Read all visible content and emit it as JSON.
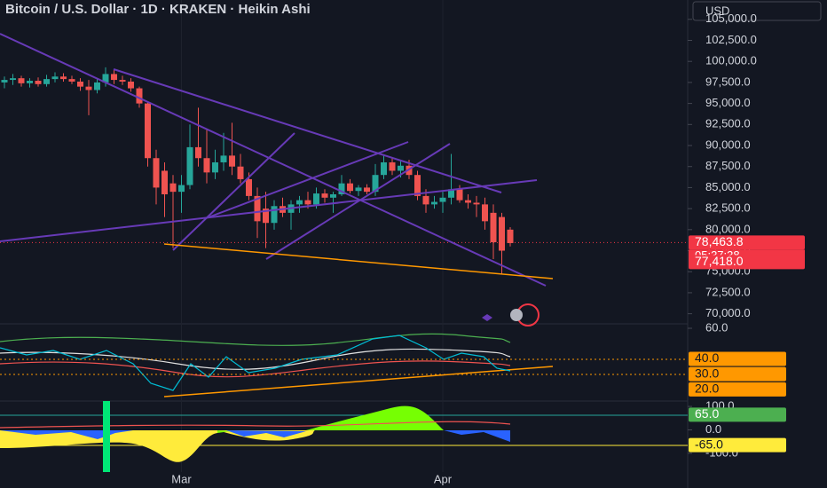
{
  "title": "Bitcoin / U.S. Dollar · 1D · KRAKEN · Heikin Ashi",
  "currency_button": "USD",
  "chart_data": [
    {
      "type": "candlestick",
      "up_color": "#26a69a",
      "down_color": "#ef5350",
      "categories": [
        null,
        null,
        null,
        null,
        null,
        null,
        null,
        null,
        null,
        null,
        null,
        null,
        null,
        null,
        null,
        null,
        null,
        null,
        null,
        null,
        null,
        "Mar",
        null,
        null,
        null,
        null,
        null,
        null,
        null,
        null,
        null,
        null,
        null,
        null,
        null,
        null,
        null,
        null,
        null,
        null,
        null,
        null,
        null,
        null,
        null,
        null,
        null,
        null,
        null,
        null,
        null,
        null,
        "Apr",
        null,
        null,
        null,
        null,
        null,
        null,
        null,
        null
      ],
      "open": [
        97500,
        97800,
        98000,
        97400,
        97700,
        97300,
        97900,
        98200,
        97900,
        97600,
        97000,
        96600,
        97500,
        98500,
        97800,
        97600,
        96800,
        95000,
        88500,
        87000,
        85500,
        84500,
        85300,
        89800,
        88500,
        86800,
        88000,
        88800,
        87500,
        86000,
        84000,
        82500,
        80800,
        82800,
        82000,
        83000,
        83500,
        83000,
        84300,
        83800,
        84200,
        85500,
        84600,
        85000,
        84500,
        86500,
        88000,
        87000,
        87600,
        86500,
        84000,
        83000,
        83300,
        83800,
        84800,
        83500,
        83200,
        83000,
        82000,
        81500,
        80000
      ],
      "high": [
        98200,
        98500,
        98300,
        98000,
        98100,
        98400,
        98700,
        98600,
        98300,
        98000,
        97800,
        97900,
        99300,
        99000,
        98300,
        98000,
        97000,
        95200,
        89500,
        88000,
        86500,
        86500,
        92500,
        94500,
        92000,
        89500,
        91500,
        92700,
        89000,
        86800,
        85000,
        84500,
        83500,
        83800,
        83500,
        84000,
        84500,
        85000,
        84800,
        84500,
        86500,
        86000,
        85300,
        85400,
        87800,
        88800,
        88500,
        88200,
        88300,
        87000,
        84800,
        84000,
        84500,
        89000,
        85300,
        84200,
        84000,
        83800,
        83000,
        82000,
        80300
      ],
      "low": [
        96800,
        97200,
        97000,
        96900,
        97000,
        97000,
        97500,
        97600,
        97300,
        96500,
        93600,
        96200,
        97000,
        97300,
        97200,
        96400,
        94500,
        87500,
        83000,
        81500,
        77800,
        82000,
        84800,
        87500,
        85500,
        86000,
        87000,
        86500,
        85500,
        83500,
        79000,
        77800,
        80000,
        81500,
        80000,
        82000,
        82500,
        82500,
        83200,
        82000,
        84000,
        84300,
        84000,
        84200,
        84000,
        86000,
        86500,
        86200,
        86000,
        83500,
        82000,
        82500,
        82000,
        83000,
        83200,
        82500,
        81500,
        80000,
        76500,
        74700,
        78000
      ],
      "close": [
        97800,
        98000,
        97400,
        97700,
        97300,
        97900,
        98200,
        97900,
        97600,
        97000,
        96600,
        97500,
        98500,
        97800,
        97600,
        96800,
        95000,
        88500,
        85000,
        84200,
        84500,
        85300,
        89800,
        88500,
        86800,
        88000,
        88800,
        87500,
        86000,
        84000,
        81000,
        80800,
        82800,
        82000,
        83000,
        83500,
        83000,
        84300,
        83800,
        84200,
        85500,
        84600,
        85000,
        84500,
        86500,
        88000,
        87000,
        87600,
        86500,
        84000,
        83000,
        83300,
        83800,
        84800,
        83500,
        83200,
        83000,
        81000,
        78500,
        77500,
        78400
      ],
      "ylim": [
        68800,
        107300
      ],
      "yticks": [
        {
          "value": 70000,
          "label": "70,000.0"
        },
        {
          "value": 72500,
          "label": "72,500.0"
        },
        {
          "value": 75000,
          "label": "75,000.0"
        },
        {
          "value": 77500,
          "label": "77,500.0"
        },
        {
          "value": 80000,
          "label": "80,000.0"
        },
        {
          "value": 82500,
          "label": "82,500.0"
        },
        {
          "value": 85000,
          "label": "85,000.0"
        },
        {
          "value": 87500,
          "label": "87,500.0"
        },
        {
          "value": 90000,
          "label": "90,000.0"
        },
        {
          "value": 92500,
          "label": "92,500.0"
        },
        {
          "value": 95000,
          "label": "95,000.0"
        },
        {
          "value": 97500,
          "label": "97,500.0"
        },
        {
          "value": 100000,
          "label": "100,000.0"
        },
        {
          "value": 102500,
          "label": "102,500.0"
        },
        {
          "value": 105000,
          "label": "105,000.0"
        }
      ],
      "badges": [
        {
          "value": 78463.8,
          "label": "78,463.8",
          "color": "#f23645",
          "text_color": "#ffffff"
        },
        {
          "value": 77418,
          "label": "77,418.0",
          "color": "#f23645",
          "text_color": "#ffffff"
        }
      ],
      "countdown": "05:37:38"
    },
    {
      "ylim": [
        12.4,
        62.9
      ],
      "yticks": [
        {
          "value": 60,
          "label": "60.0"
        }
      ],
      "badges": [
        {
          "value": 40,
          "label": "40.0",
          "color": "#ff9800",
          "text_color": "#131722"
        },
        {
          "value": 30,
          "label": "30.0",
          "color": "#ff9800",
          "text_color": "#131722"
        },
        {
          "value": 20,
          "label": "20.0",
          "color": "#ff9800",
          "text_color": "#131722"
        }
      ]
    },
    {
      "ylim": [
        -180,
        123
      ],
      "yticks": [
        {
          "value": 100,
          "label": "100.0"
        },
        {
          "value": 0,
          "label": "0.0"
        },
        {
          "value": -100,
          "label": "-100.0"
        }
      ],
      "badges": [
        {
          "value": 65,
          "label": "65.0",
          "color": "#4caf50",
          "text_color": "#ffffff"
        },
        {
          "value": -65,
          "label": "-65.0",
          "color": "#ffeb3b",
          "text_color": "#131722"
        }
      ]
    }
  ]
}
